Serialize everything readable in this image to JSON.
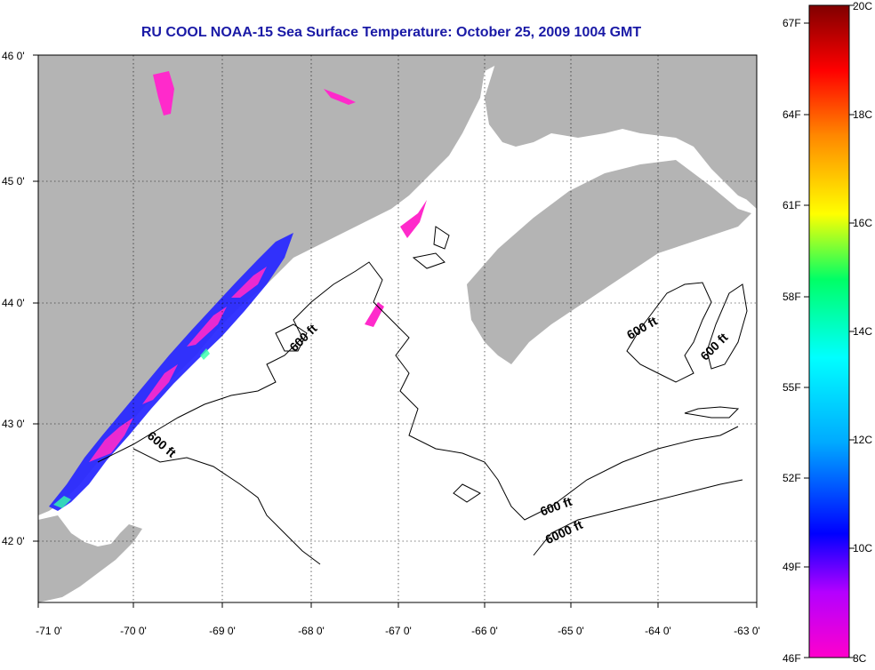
{
  "title": "RU COOL  NOAA-15  Sea Surface Temperature:  October 25, 2009 1004 GMT",
  "latitude_labels": [
    "46 0'",
    "45 0'",
    "44 0'",
    "43 0'",
    "42 0'"
  ],
  "longitude_labels": [
    "-71 0'",
    "-70 0'",
    "-69 0'",
    "-68 0'",
    "-67 0'",
    "-66 0'",
    "-65 0'",
    "-64 0'",
    "-63 0'"
  ],
  "colorbar": {
    "fahrenheit_labels": [
      "67F",
      "64F",
      "61F",
      "58F",
      "55F",
      "52F",
      "49F",
      "46F"
    ],
    "celsius_labels": [
      "20C",
      "18C",
      "16C",
      "14C",
      "12C",
      "10C",
      "8C"
    ],
    "colors": [
      "#ff00cc",
      "#0000ff",
      "#00aaff",
      "#00ffff",
      "#00ff66",
      "#ffff00",
      "#ff8800",
      "#ff0000",
      "#800000"
    ]
  },
  "contour_labels": [
    "600 ft",
    "600 ft",
    "600 ft",
    "600 ft",
    "600 ft",
    "6000 ft"
  ],
  "colors": {
    "land": "#b4b4b4",
    "ocean": "#ffffff",
    "title": "#1a1aa6",
    "grid": "#000000"
  }
}
